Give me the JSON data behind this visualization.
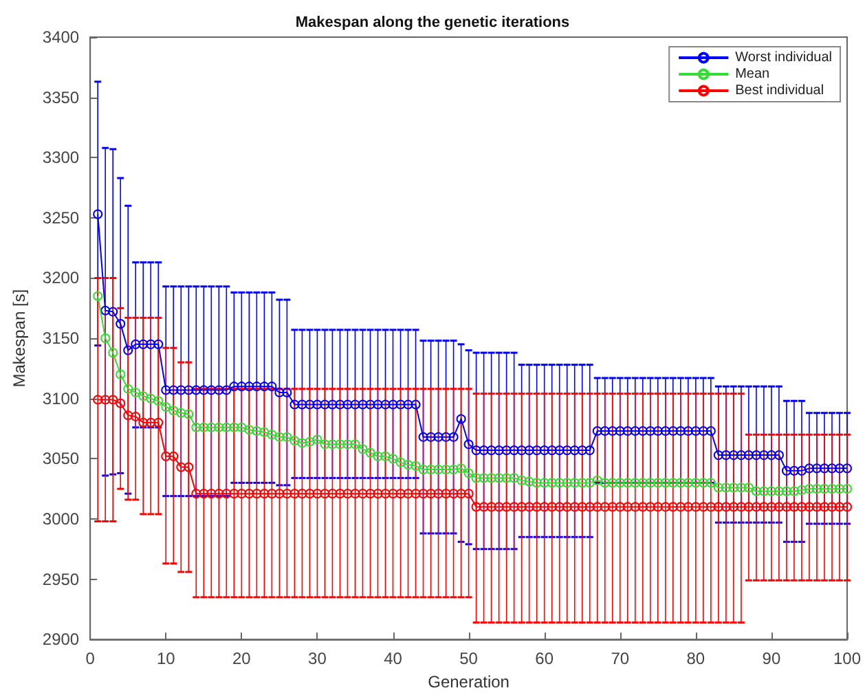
{
  "chart_data": {
    "type": "line",
    "title": "Makespan along the genetic iterations",
    "xlabel": "Generation",
    "ylabel": "Makespan [s]",
    "x": [
      1,
      2,
      3,
      4,
      5,
      6,
      7,
      8,
      9,
      10,
      11,
      12,
      13,
      14,
      15,
      16,
      17,
      18,
      19,
      20,
      21,
      22,
      23,
      24,
      25,
      26,
      27,
      28,
      29,
      30,
      31,
      32,
      33,
      34,
      35,
      36,
      37,
      38,
      39,
      40,
      41,
      42,
      43,
      44,
      45,
      46,
      47,
      48,
      49,
      50,
      51,
      52,
      53,
      54,
      55,
      56,
      57,
      58,
      59,
      60,
      61,
      62,
      63,
      64,
      65,
      66,
      67,
      68,
      69,
      70,
      71,
      72,
      73,
      74,
      75,
      76,
      77,
      78,
      79,
      80,
      81,
      82,
      83,
      84,
      85,
      86,
      87,
      88,
      89,
      90,
      91,
      92,
      93,
      94,
      95,
      96,
      97,
      98,
      99,
      100
    ],
    "xlim": [
      0,
      100
    ],
    "xticks": [
      0,
      10,
      20,
      30,
      40,
      50,
      60,
      70,
      80,
      90,
      100
    ],
    "ylim": [
      2900,
      3400
    ],
    "yticks": [
      2900,
      2950,
      3000,
      3050,
      3100,
      3150,
      3200,
      3250,
      3300,
      3350,
      3400
    ],
    "marker": "circle",
    "legend": "top right",
    "series": [
      {
        "name": "Worst individual",
        "color": "#0000ff",
        "values": [
          3253,
          3173,
          3172,
          3162,
          3140,
          3145,
          3145,
          3145,
          3145,
          3107,
          3107,
          3107,
          3107,
          3107,
          3107,
          3107,
          3107,
          3107,
          3110,
          3110,
          3110,
          3110,
          3110,
          3110,
          3105,
          3105,
          3095,
          3095,
          3095,
          3095,
          3095,
          3095,
          3095,
          3095,
          3095,
          3095,
          3095,
          3095,
          3095,
          3095,
          3095,
          3095,
          3095,
          3068,
          3068,
          3068,
          3068,
          3068,
          3083,
          3062,
          3057,
          3057,
          3057,
          3057,
          3057,
          3057,
          3057,
          3057,
          3057,
          3057,
          3057,
          3057,
          3057,
          3057,
          3057,
          3057,
          3073,
          3073,
          3073,
          3073,
          3073,
          3073,
          3073,
          3073,
          3073,
          3073,
          3073,
          3073,
          3073,
          3073,
          3073,
          3073,
          3053,
          3053,
          3053,
          3053,
          3053,
          3053,
          3053,
          3053,
          3053,
          3040,
          3040,
          3040,
          3042,
          3042,
          3042,
          3042,
          3042,
          3042
        ],
        "errors": [
          [
            3144,
            3363
          ],
          [
            3036,
            3308
          ],
          [
            3037,
            3307
          ],
          [
            3038,
            3283
          ],
          [
            3021,
            3260
          ],
          [
            3076,
            3213
          ],
          [
            3076,
            3213
          ],
          [
            3076,
            3213
          ],
          [
            3076,
            3213
          ],
          [
            3019,
            3193
          ],
          [
            3019,
            3193
          ],
          [
            3019,
            3193
          ],
          [
            3019,
            3193
          ],
          [
            3019,
            3193
          ],
          [
            3019,
            3193
          ],
          [
            3019,
            3193
          ],
          [
            3019,
            3193
          ],
          [
            3019,
            3193
          ],
          [
            3030,
            3188
          ],
          [
            3030,
            3188
          ],
          [
            3030,
            3188
          ],
          [
            3030,
            3188
          ],
          [
            3030,
            3188
          ],
          [
            3030,
            3188
          ],
          [
            3028,
            3182
          ],
          [
            3028,
            3182
          ],
          [
            3034,
            3157
          ],
          [
            3034,
            3157
          ],
          [
            3034,
            3157
          ],
          [
            3034,
            3157
          ],
          [
            3034,
            3157
          ],
          [
            3034,
            3157
          ],
          [
            3034,
            3157
          ],
          [
            3034,
            3157
          ],
          [
            3034,
            3157
          ],
          [
            3034,
            3157
          ],
          [
            3034,
            3157
          ],
          [
            3034,
            3157
          ],
          [
            3034,
            3157
          ],
          [
            3034,
            3157
          ],
          [
            3034,
            3157
          ],
          [
            3034,
            3157
          ],
          [
            3034,
            3157
          ],
          [
            2988,
            3148
          ],
          [
            2988,
            3148
          ],
          [
            2988,
            3148
          ],
          [
            2988,
            3148
          ],
          [
            2988,
            3148
          ],
          [
            2981,
            3145
          ],
          [
            2979,
            3140
          ],
          [
            2975,
            3138
          ],
          [
            2975,
            3138
          ],
          [
            2975,
            3138
          ],
          [
            2975,
            3138
          ],
          [
            2975,
            3138
          ],
          [
            2975,
            3138
          ],
          [
            2985,
            3128
          ],
          [
            2985,
            3128
          ],
          [
            2985,
            3128
          ],
          [
            2985,
            3128
          ],
          [
            2985,
            3128
          ],
          [
            2985,
            3128
          ],
          [
            2985,
            3128
          ],
          [
            2985,
            3128
          ],
          [
            2985,
            3128
          ],
          [
            2985,
            3128
          ],
          [
            3030,
            3117
          ],
          [
            3030,
            3117
          ],
          [
            3030,
            3117
          ],
          [
            3030,
            3117
          ],
          [
            3030,
            3117
          ],
          [
            3030,
            3117
          ],
          [
            3030,
            3117
          ],
          [
            3030,
            3117
          ],
          [
            3030,
            3117
          ],
          [
            3030,
            3117
          ],
          [
            3030,
            3117
          ],
          [
            3030,
            3117
          ],
          [
            3030,
            3117
          ],
          [
            3030,
            3117
          ],
          [
            3030,
            3117
          ],
          [
            3030,
            3117
          ],
          [
            2997,
            3110
          ],
          [
            2997,
            3110
          ],
          [
            2997,
            3110
          ],
          [
            2997,
            3110
          ],
          [
            2997,
            3110
          ],
          [
            2997,
            3110
          ],
          [
            2997,
            3110
          ],
          [
            2997,
            3110
          ],
          [
            2997,
            3110
          ],
          [
            2981,
            3098
          ],
          [
            2981,
            3098
          ],
          [
            2981,
            3098
          ],
          [
            2996,
            3088
          ],
          [
            2996,
            3088
          ],
          [
            2996,
            3088
          ],
          [
            2996,
            3088
          ],
          [
            2996,
            3088
          ],
          [
            2996,
            3088
          ]
        ]
      },
      {
        "name": "Mean",
        "color": "#33dd33",
        "values": [
          3185,
          3150,
          3138,
          3120,
          3108,
          3105,
          3102,
          3100,
          3098,
          3093,
          3090,
          3088,
          3087,
          3076,
          3076,
          3076,
          3076,
          3076,
          3076,
          3076,
          3074,
          3073,
          3072,
          3070,
          3068,
          3068,
          3065,
          3063,
          3064,
          3066,
          3062,
          3062,
          3062,
          3062,
          3062,
          3058,
          3055,
          3052,
          3052,
          3050,
          3047,
          3045,
          3044,
          3041,
          3041,
          3041,
          3041,
          3041,
          3042,
          3038,
          3034,
          3034,
          3034,
          3034,
          3034,
          3034,
          3032,
          3031,
          3030,
          3030,
          3030,
          3030,
          3030,
          3030,
          3030,
          3030,
          3032,
          3030,
          3030,
          3030,
          3030,
          3030,
          3030,
          3030,
          3030,
          3030,
          3030,
          3030,
          3030,
          3030,
          3030,
          3030,
          3026,
          3026,
          3026,
          3026,
          3026,
          3023,
          3023,
          3023,
          3023,
          3023,
          3023,
          3024,
          3025,
          3025,
          3025,
          3025,
          3025,
          3025
        ]
      },
      {
        "name": "Best individual",
        "color": "#ff0000",
        "values": [
          3099,
          3099,
          3099,
          3096,
          3086,
          3085,
          3080,
          3080,
          3080,
          3052,
          3052,
          3043,
          3043,
          3021,
          3021,
          3021,
          3021,
          3021,
          3021,
          3021,
          3021,
          3021,
          3021,
          3021,
          3021,
          3021,
          3021,
          3021,
          3021,
          3021,
          3021,
          3021,
          3021,
          3021,
          3021,
          3021,
          3021,
          3021,
          3021,
          3021,
          3021,
          3021,
          3021,
          3021,
          3021,
          3021,
          3021,
          3021,
          3021,
          3021,
          3010,
          3010,
          3010,
          3010,
          3010,
          3010,
          3010,
          3010,
          3010,
          3010,
          3010,
          3010,
          3010,
          3010,
          3010,
          3010,
          3010,
          3010,
          3010,
          3010,
          3010,
          3010,
          3010,
          3010,
          3010,
          3010,
          3010,
          3010,
          3010,
          3010,
          3010,
          3010,
          3010,
          3010,
          3010,
          3010,
          3010,
          3010,
          3010,
          3010,
          3010,
          3010,
          3010,
          3010,
          3010,
          3010,
          3010,
          3010,
          3010,
          3010
        ],
        "errors": [
          [
            2998,
            3200
          ],
          [
            2998,
            3200
          ],
          [
            2998,
            3200
          ],
          [
            3025,
            3175
          ],
          [
            3016,
            3167
          ],
          [
            3016,
            3167
          ],
          [
            3004,
            3167
          ],
          [
            3004,
            3167
          ],
          [
            3004,
            3167
          ],
          [
            2963,
            3142
          ],
          [
            2963,
            3142
          ],
          [
            2956,
            3130
          ],
          [
            2956,
            3130
          ],
          [
            2935,
            3108
          ],
          [
            2935,
            3108
          ],
          [
            2935,
            3108
          ],
          [
            2935,
            3108
          ],
          [
            2935,
            3108
          ],
          [
            2935,
            3108
          ],
          [
            2935,
            3108
          ],
          [
            2935,
            3108
          ],
          [
            2935,
            3108
          ],
          [
            2935,
            3108
          ],
          [
            2935,
            3108
          ],
          [
            2935,
            3108
          ],
          [
            2935,
            3108
          ],
          [
            2935,
            3108
          ],
          [
            2935,
            3108
          ],
          [
            2935,
            3108
          ],
          [
            2935,
            3108
          ],
          [
            2935,
            3108
          ],
          [
            2935,
            3108
          ],
          [
            2935,
            3108
          ],
          [
            2935,
            3108
          ],
          [
            2935,
            3108
          ],
          [
            2935,
            3108
          ],
          [
            2935,
            3108
          ],
          [
            2935,
            3108
          ],
          [
            2935,
            3108
          ],
          [
            2935,
            3108
          ],
          [
            2935,
            3108
          ],
          [
            2935,
            3108
          ],
          [
            2935,
            3108
          ],
          [
            2935,
            3108
          ],
          [
            2935,
            3108
          ],
          [
            2935,
            3108
          ],
          [
            2935,
            3108
          ],
          [
            2935,
            3108
          ],
          [
            2935,
            3108
          ],
          [
            2935,
            3108
          ],
          [
            2914,
            3104
          ],
          [
            2914,
            3104
          ],
          [
            2914,
            3104
          ],
          [
            2914,
            3104
          ],
          [
            2914,
            3104
          ],
          [
            2914,
            3104
          ],
          [
            2914,
            3104
          ],
          [
            2914,
            3104
          ],
          [
            2914,
            3104
          ],
          [
            2914,
            3104
          ],
          [
            2914,
            3104
          ],
          [
            2914,
            3104
          ],
          [
            2914,
            3104
          ],
          [
            2914,
            3104
          ],
          [
            2914,
            3104
          ],
          [
            2914,
            3104
          ],
          [
            2914,
            3104
          ],
          [
            2914,
            3104
          ],
          [
            2914,
            3104
          ],
          [
            2914,
            3104
          ],
          [
            2914,
            3104
          ],
          [
            2914,
            3104
          ],
          [
            2914,
            3104
          ],
          [
            2914,
            3104
          ],
          [
            2914,
            3104
          ],
          [
            2914,
            3104
          ],
          [
            2914,
            3104
          ],
          [
            2914,
            3104
          ],
          [
            2914,
            3104
          ],
          [
            2914,
            3104
          ],
          [
            2914,
            3104
          ],
          [
            2914,
            3104
          ],
          [
            2914,
            3104
          ],
          [
            2914,
            3104
          ],
          [
            2914,
            3104
          ],
          [
            2914,
            3104
          ],
          [
            2949,
            3070
          ],
          [
            2949,
            3070
          ],
          [
            2949,
            3070
          ],
          [
            2949,
            3070
          ],
          [
            2949,
            3070
          ],
          [
            2949,
            3070
          ],
          [
            2949,
            3070
          ],
          [
            2949,
            3070
          ],
          [
            2949,
            3070
          ],
          [
            2949,
            3070
          ],
          [
            2949,
            3070
          ],
          [
            2949,
            3070
          ],
          [
            2949,
            3070
          ],
          [
            2949,
            3070
          ]
        ]
      }
    ]
  }
}
